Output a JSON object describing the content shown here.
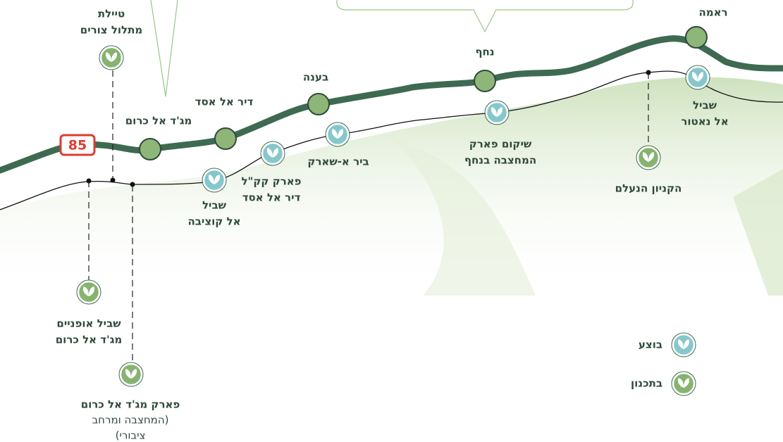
{
  "road_number": "85",
  "towns": [
    {
      "label": "ראמה"
    },
    {
      "label": "נחף"
    },
    {
      "label": "בענה"
    },
    {
      "label": "דיר אל אסד"
    },
    {
      "label": "מג'ד אל כרום"
    }
  ],
  "projects": [
    {
      "lines": [
        "טיילת",
        "מתלול צורים"
      ],
      "color": "#86b36f"
    },
    {
      "lines": [
        "שביל",
        "אל קוציבה"
      ],
      "color": "#86c7cc"
    },
    {
      "lines": [
        "פארק קק\"ל",
        "דיר אל אסד"
      ],
      "color": "#86c7cc"
    },
    {
      "lines": [
        "ביר א-שארק"
      ],
      "color": "#86c7cc"
    },
    {
      "lines": [
        "שיקום פארק",
        "המחצבה בנחף"
      ],
      "color": "#86c7cc"
    },
    {
      "lines": [
        "שביל",
        "אל נאטור"
      ],
      "color": "#86c7cc"
    },
    {
      "lines": [
        "הקניון הנעלם"
      ],
      "color": "#86b36f"
    },
    {
      "lines": [
        "שביל אופניים",
        "מג'ד אל כרום"
      ],
      "color": "#86b36f"
    },
    {
      "lines": [
        "פארק מג'ד אל כרום"
      ],
      "sub": [
        "(המחצבה ומרחב",
        "ציבורי)"
      ],
      "color": "#86b36f"
    }
  ],
  "legend": [
    {
      "label": "בוצע",
      "color": "#86c7cc"
    },
    {
      "label": "בתכנון",
      "color": "#86b36f"
    }
  ]
}
